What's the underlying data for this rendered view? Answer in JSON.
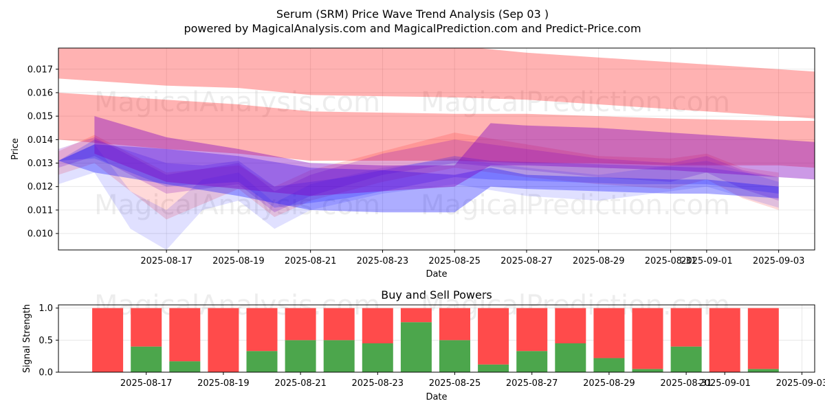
{
  "title": "Serum (SRM) Price Wave Trend Analysis (Sep 03 )",
  "subtitle": "powered by MagicalAnalysis.com and MagicalPrediction.com and Predict-Price.com",
  "watermarks": [
    "MagicalAnalysis.com",
    "MagicalPrediction.com"
  ],
  "colors": {
    "red": "#ff0000",
    "blue": "#0000ff",
    "purple": "#8000c0",
    "buy": "#4ca64c",
    "sell": "#ff4b4b"
  },
  "chart_data": [
    {
      "type": "area",
      "title": "",
      "xlabel": "Date",
      "ylabel": "Price",
      "ylim": [
        0.0093,
        0.0179
      ],
      "xlim": [
        "2025-08-14",
        "2025-09-04"
      ],
      "grid": true,
      "x_ticks": [
        "2025-08-17",
        "2025-08-19",
        "2025-08-21",
        "2025-08-23",
        "2025-08-25",
        "2025-08-27",
        "2025-08-29",
        "2025-08-31",
        "2025-09-01",
        "2025-09-03"
      ],
      "y_ticks": [
        0.01,
        0.011,
        0.012,
        0.013,
        0.014,
        0.015,
        0.016,
        0.017
      ],
      "y_tick_labels": [
        "0.010",
        "0.011",
        "0.012",
        "0.013",
        "0.014",
        "0.015",
        "0.016",
        "0.017"
      ],
      "bands": [
        {
          "name": "red-upper",
          "color": "red",
          "opacity": 0.3,
          "x": [
            "2025-08-14",
            "2025-08-17",
            "2025-08-19",
            "2025-08-21",
            "2025-08-25",
            "2025-08-27",
            "2025-08-29",
            "2025-08-31",
            "2025-09-03",
            "2025-09-04"
          ],
          "upper": [
            0.018,
            0.0181,
            0.0181,
            0.0182,
            0.018,
            0.0177,
            0.0175,
            0.0173,
            0.017,
            0.0169
          ],
          "lower": [
            0.0166,
            0.0163,
            0.0162,
            0.0159,
            0.0158,
            0.0157,
            0.0155,
            0.0153,
            0.015,
            0.0149
          ]
        },
        {
          "name": "red-lower",
          "color": "red",
          "opacity": 0.3,
          "x": [
            "2025-08-14",
            "2025-08-17",
            "2025-08-19",
            "2025-08-21",
            "2025-08-25",
            "2025-08-27",
            "2025-08-29",
            "2025-08-31",
            "2025-09-03",
            "2025-09-04"
          ],
          "upper": [
            0.016,
            0.0157,
            0.0155,
            0.0152,
            0.0151,
            0.0151,
            0.015,
            0.0149,
            0.0148,
            0.0148
          ],
          "lower": [
            0.014,
            0.0136,
            0.0134,
            0.0131,
            0.0131,
            0.013,
            0.013,
            0.0129,
            0.0129,
            0.0128
          ]
        },
        {
          "name": "red-wave-1",
          "color": "red",
          "opacity": 0.15,
          "x": [
            "2025-08-14",
            "2025-08-15",
            "2025-08-17",
            "2025-08-19",
            "2025-08-20",
            "2025-08-21",
            "2025-08-23",
            "2025-08-25",
            "2025-08-27",
            "2025-08-29",
            "2025-08-31",
            "2025-09-01",
            "2025-09-02",
            "2025-09-03"
          ],
          "upper": [
            0.0135,
            0.0142,
            0.0126,
            0.0129,
            0.012,
            0.0127,
            0.0135,
            0.0143,
            0.0138,
            0.0133,
            0.0132,
            0.0134,
            0.0128,
            0.0126
          ],
          "lower": [
            0.0125,
            0.013,
            0.0106,
            0.0119,
            0.0107,
            0.0114,
            0.0122,
            0.0128,
            0.0124,
            0.0121,
            0.0119,
            0.0123,
            0.0115,
            0.011
          ]
        },
        {
          "name": "purple-wave-1",
          "color": "purple",
          "opacity": 0.22,
          "x": [
            "2025-08-14",
            "2025-08-15",
            "2025-08-17",
            "2025-08-19",
            "2025-08-20",
            "2025-08-21",
            "2025-08-23",
            "2025-08-25",
            "2025-08-27",
            "2025-08-29",
            "2025-08-31",
            "2025-09-01",
            "2025-09-02",
            "2025-09-03"
          ],
          "upper": [
            0.0136,
            0.0141,
            0.0125,
            0.013,
            0.0118,
            0.0125,
            0.0134,
            0.014,
            0.0136,
            0.0132,
            0.013,
            0.0133,
            0.0127,
            0.0124
          ],
          "lower": [
            0.0128,
            0.0133,
            0.0117,
            0.0121,
            0.0109,
            0.0116,
            0.0125,
            0.013,
            0.0127,
            0.0124,
            0.0122,
            0.0126,
            0.0119,
            0.0114
          ]
        },
        {
          "name": "blue-wave-1",
          "color": "blue",
          "opacity": 0.12,
          "x": [
            "2025-08-14",
            "2025-08-15",
            "2025-08-16",
            "2025-08-17",
            "2025-08-18",
            "2025-08-19",
            "2025-08-20",
            "2025-08-21",
            "2025-08-23",
            "2025-08-25",
            "2025-08-27",
            "2025-08-29",
            "2025-09-01",
            "2025-09-03"
          ],
          "upper": [
            0.0131,
            0.0138,
            0.0118,
            0.011,
            0.0123,
            0.0126,
            0.0113,
            0.0121,
            0.0128,
            0.0132,
            0.0128,
            0.0125,
            0.0131,
            0.0122
          ],
          "lower": [
            0.0121,
            0.0126,
            0.0102,
            0.0093,
            0.011,
            0.0114,
            0.0102,
            0.011,
            0.0117,
            0.0121,
            0.0116,
            0.0114,
            0.012,
            0.0111
          ]
        },
        {
          "name": "blue-wave-2",
          "color": "blue",
          "opacity": 0.2,
          "x": [
            "2025-08-14",
            "2025-08-15",
            "2025-08-17",
            "2025-08-18",
            "2025-08-19",
            "2025-08-20",
            "2025-08-22",
            "2025-08-24",
            "2025-08-25",
            "2025-08-26",
            "2025-08-28",
            "2025-08-30",
            "2025-09-01",
            "2025-09-03"
          ],
          "upper": [
            0.0131,
            0.014,
            0.013,
            0.0129,
            0.0131,
            0.012,
            0.0124,
            0.013,
            0.0133,
            0.0131,
            0.013,
            0.0129,
            0.0128,
            0.0124
          ],
          "lower": [
            0.0131,
            0.0132,
            0.012,
            0.0121,
            0.0122,
            0.0111,
            0.0115,
            0.0121,
            0.0124,
            0.0123,
            0.0122,
            0.0121,
            0.0121,
            0.0117
          ]
        },
        {
          "name": "blue-main",
          "color": "blue",
          "opacity": 0.32,
          "x": [
            "2025-08-14",
            "2025-08-15",
            "2025-08-17",
            "2025-08-19",
            "2025-08-21",
            "2025-08-23",
            "2025-08-25",
            "2025-08-26",
            "2025-08-27",
            "2025-08-29",
            "2025-08-31",
            "2025-09-01",
            "2025-09-03"
          ],
          "upper": [
            0.0131,
            0.0138,
            0.0136,
            0.0133,
            0.0128,
            0.0127,
            0.0125,
            0.0128,
            0.0125,
            0.0124,
            0.0123,
            0.0123,
            0.012
          ],
          "lower": [
            0.0131,
            0.0126,
            0.0121,
            0.0116,
            0.011,
            0.0109,
            0.0109,
            0.012,
            0.0119,
            0.0118,
            0.0117,
            0.0117,
            0.0115
          ]
        },
        {
          "name": "purple-upper",
          "color": "purple",
          "opacity": 0.4,
          "x": [
            "2025-08-15",
            "2025-08-17",
            "2025-08-19",
            "2025-08-21",
            "2025-08-23",
            "2025-08-25",
            "2025-08-26",
            "2025-08-27",
            "2025-08-29",
            "2025-08-31",
            "2025-09-01",
            "2025-09-03",
            "2025-09-04"
          ],
          "upper": [
            0.015,
            0.0141,
            0.0136,
            0.013,
            0.0129,
            0.0129,
            0.0147,
            0.0146,
            0.0145,
            0.0143,
            0.0142,
            0.014,
            0.0139
          ],
          "lower": [
            0.0134,
            0.0122,
            0.0119,
            0.0116,
            0.0118,
            0.012,
            0.0129,
            0.0129,
            0.0128,
            0.0127,
            0.0126,
            0.0124,
            0.0123
          ]
        }
      ]
    },
    {
      "type": "bar",
      "title": "Buy and Sell Powers",
      "xlabel": "Date",
      "ylabel": "Signal Strength",
      "ylim": [
        0,
        1.05
      ],
      "y_ticks": [
        0.0,
        0.5,
        1.0
      ],
      "y_tick_labels": [
        "0.0",
        "0.5",
        "1.0"
      ],
      "x_ticks": [
        "2025-08-17",
        "2025-08-19",
        "2025-08-21",
        "2025-08-23",
        "2025-08-25",
        "2025-08-27",
        "2025-08-29",
        "2025-08-31",
        "2025-09-01",
        "2025-09-03"
      ],
      "categories": [
        "2025-08-16",
        "2025-08-17",
        "2025-08-18",
        "2025-08-19",
        "2025-08-20",
        "2025-08-21",
        "2025-08-22",
        "2025-08-23",
        "2025-08-24",
        "2025-08-25",
        "2025-08-26",
        "2025-08-27",
        "2025-08-28",
        "2025-08-29",
        "2025-08-30",
        "2025-08-31",
        "2025-09-01",
        "2025-09-02"
      ],
      "series": [
        {
          "name": "Buy",
          "color": "buy",
          "values": [
            0.0,
            0.4,
            0.17,
            0.0,
            0.33,
            0.5,
            0.5,
            0.45,
            0.78,
            0.5,
            0.12,
            0.33,
            0.45,
            0.22,
            0.05,
            0.4,
            0.0,
            0.05
          ]
        },
        {
          "name": "Sell",
          "color": "sell",
          "values": [
            1.0,
            0.6,
            0.83,
            1.0,
            0.67,
            0.5,
            0.5,
            0.55,
            0.22,
            0.5,
            0.88,
            0.67,
            0.55,
            0.78,
            0.95,
            0.6,
            1.0,
            0.95
          ]
        }
      ]
    }
  ]
}
